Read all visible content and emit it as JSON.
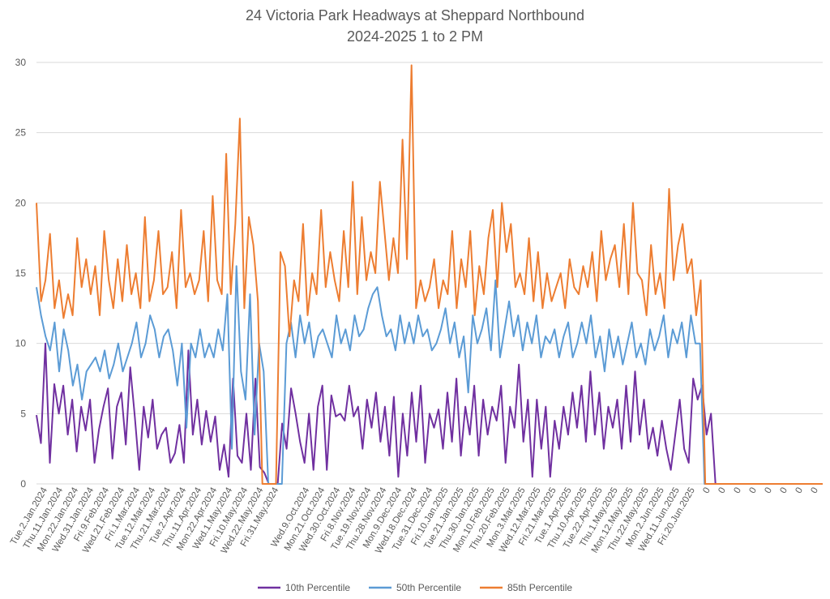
{
  "chart_data": {
    "type": "line",
    "title": "24 Victoria Park Headways at Sheppard Northbound",
    "subtitle": "2024-2025 1 to 2 PM",
    "xlabel": "",
    "ylabel": "",
    "ylim": [
      0,
      30
    ],
    "yticks": [
      0,
      5,
      10,
      15,
      20,
      25,
      30
    ],
    "grid": true,
    "legend_position": "bottom",
    "x_tick_labels": [
      "Tue.2.Jan.2024",
      "Thu.11.Jan.2024",
      "Mon.22.Jan.2024",
      "Wed.31.Jan.2024",
      "Fri.9.Feb.2024",
      "Wed.21.Feb.2024",
      "Fri.1.Mar.2024",
      "Tue.12.Mar.2024",
      "Thu.21.Mar.2024",
      "Tue.2.Apr.2024",
      "Thu.11.Apr.2024",
      "Mon.22.Apr.2024",
      "Wed.1.May.2024",
      "Fri.10.May.2024",
      "Wed.22.May.2024",
      "Fri.31.May.2024",
      "",
      "Wed.9.Oct.2024",
      "Mon.21.Oct.2024",
      "Wed.30.Oct.2024",
      "Fri.8.Nov.2024",
      "Tue.19.Nov.2024",
      "Thu.28.Nov.2024",
      "Mon.9.Dec.2024",
      "Wed.18.Dec.2024",
      "Tue.31.Dec.2024",
      "Fri.10.Jan.2025",
      "Tue.21.Jan.2025",
      "Thu.30.Jan.2025",
      "Mon.10.Feb.2025",
      "Thu.20.Feb.2025",
      "Mon.3.Mar.2025",
      "Wed.12.Mar.2025",
      "Fri.21.Mar.2025",
      "Tue.1.Apr.2025",
      "Thu.10.Apr.2025",
      "Tue.22.Apr.2025",
      "Thu.1.May.2025",
      "Mon.12.May.2025",
      "Thu.22.May.2025",
      "Mon.2.Jun.2025",
      "Wed.11.Jun.2025",
      "Fri.20.Jun.2025",
      "0",
      "0",
      "0",
      "0",
      "0",
      "0",
      "0",
      "0"
    ],
    "series": [
      {
        "name": "10th Percentile",
        "color": "#7030a0",
        "values": [
          4.9,
          2.9,
          10.0,
          1.5,
          7.1,
          5.0,
          7.0,
          3.5,
          6.0,
          2.3,
          5.5,
          3.8,
          6.0,
          1.5,
          3.9,
          5.5,
          6.8,
          1.8,
          5.5,
          6.5,
          2.8,
          8.3,
          4.8,
          1.0,
          5.5,
          3.3,
          6.0,
          2.5,
          3.5,
          4.0,
          1.5,
          2.2,
          4.2,
          1.5,
          9.5,
          3.5,
          6.0,
          2.8,
          5.2,
          3.0,
          4.8,
          1.0,
          2.8,
          0.5,
          7.5,
          2.0,
          1.5,
          5.0,
          1.0,
          7.5,
          1.2,
          0.8,
          0.0,
          0.0,
          0.0,
          4.3,
          2.5,
          6.8,
          5.0,
          3.0,
          1.5,
          5.0,
          1.0,
          5.5,
          7.0,
          1.0,
          6.3,
          4.8,
          5.0,
          4.5,
          7.0,
          4.8,
          5.5,
          2.5,
          6.0,
          4.0,
          6.5,
          3.0,
          5.5,
          2.0,
          6.2,
          0.5,
          5.0,
          2.0,
          6.5,
          3.0,
          7.0,
          1.5,
          5.0,
          4.0,
          5.3,
          2.5,
          6.5,
          3.0,
          7.5,
          2.0,
          5.5,
          3.5,
          7.0,
          2.0,
          6.0,
          3.5,
          5.5,
          4.5,
          7.0,
          1.5,
          5.5,
          4.0,
          8.5,
          3.0,
          6.0,
          0.5,
          6.0,
          2.5,
          5.5,
          0.5,
          4.5,
          2.5,
          5.5,
          3.5,
          6.5,
          4.0,
          7.0,
          3.0,
          8.0,
          3.5,
          6.5,
          2.5,
          5.5,
          4.0,
          6.0,
          2.5,
          7.0,
          3.0,
          8.0,
          3.5,
          6.0,
          2.5,
          4.0,
          2.0,
          4.5,
          2.5,
          1.0,
          3.5,
          6.0,
          2.5,
          1.5,
          7.5,
          6.0,
          7.0,
          3.5,
          5.0,
          0.0,
          0.0,
          0.0,
          0.0,
          0.0,
          0.0,
          0.0,
          0.0,
          0.0,
          0.0,
          0.0,
          0.0,
          0.0,
          0.0,
          0.0,
          0.0,
          0.0,
          0.0,
          0.0,
          0.0,
          0.0,
          0.0,
          0.0,
          0.0,
          0.0
        ]
      },
      {
        "name": "50th Percentile",
        "color": "#5b9bd5",
        "values": [
          14.0,
          12.0,
          10.5,
          9.5,
          11.5,
          8.0,
          11.0,
          9.5,
          7.0,
          8.5,
          6.0,
          8.0,
          8.5,
          9.0,
          8.0,
          9.5,
          7.5,
          8.5,
          10.0,
          8.0,
          9.0,
          10.0,
          11.5,
          9.0,
          10.0,
          12.0,
          11.0,
          9.0,
          10.5,
          11.0,
          9.5,
          7.0,
          10.0,
          4.0,
          10.0,
          9.0,
          11.0,
          9.0,
          10.0,
          9.0,
          11.0,
          9.5,
          13.5,
          2.5,
          15.5,
          8.0,
          6.0,
          13.5,
          3.5,
          10.0,
          8.0,
          0.0,
          0.0,
          0.0,
          0.0,
          10.0,
          11.5,
          9.0,
          12.0,
          10.0,
          11.5,
          9.0,
          10.5,
          11.0,
          10.0,
          9.0,
          12.0,
          10.0,
          11.0,
          9.5,
          12.0,
          10.5,
          11.0,
          12.5,
          13.5,
          14.0,
          12.0,
          10.5,
          11.0,
          9.5,
          12.0,
          10.0,
          11.5,
          10.0,
          12.0,
          10.5,
          11.0,
          9.5,
          10.0,
          11.0,
          12.5,
          10.0,
          11.5,
          9.0,
          10.5,
          6.5,
          12.0,
          10.0,
          11.0,
          12.5,
          9.5,
          14.5,
          9.0,
          11.0,
          13.0,
          10.5,
          12.0,
          9.5,
          11.5,
          10.0,
          12.0,
          9.0,
          10.5,
          10.0,
          11.0,
          9.0,
          10.5,
          11.5,
          9.0,
          10.0,
          11.5,
          10.0,
          12.0,
          9.0,
          10.5,
          8.0,
          11.0,
          9.0,
          10.5,
          8.5,
          10.0,
          11.5,
          9.0,
          10.0,
          8.5,
          11.0,
          9.5,
          10.5,
          12.0,
          9.0,
          11.0,
          10.0,
          11.5,
          9.0,
          12.0,
          10.0,
          10.0,
          0.0,
          0.0,
          0.0,
          0.0,
          0.0,
          0.0,
          0.0,
          0.0,
          0.0,
          0.0,
          0.0,
          0.0,
          0.0,
          0.0,
          0.0,
          0.0,
          0.0,
          0.0,
          0.0,
          0.0,
          0.0,
          0.0,
          0.0,
          0.0,
          0.0,
          0.0,
          0.0
        ]
      },
      {
        "name": "85th Percentile",
        "color": "#ed7d31",
        "values": [
          20.0,
          13.0,
          14.5,
          17.8,
          12.5,
          14.5,
          11.8,
          13.5,
          12.0,
          17.5,
          14.0,
          16.0,
          13.5,
          15.5,
          12.0,
          18.0,
          14.5,
          12.5,
          16.0,
          13.0,
          17.0,
          13.5,
          15.0,
          12.5,
          19.0,
          13.0,
          14.5,
          18.0,
          13.5,
          14.0,
          16.5,
          12.5,
          19.5,
          14.0,
          15.0,
          13.5,
          14.5,
          18.0,
          13.0,
          20.5,
          14.5,
          13.5,
          23.5,
          13.5,
          18.5,
          26.0,
          12.5,
          19.0,
          17.0,
          13.0,
          0.0,
          0.0,
          0.0,
          0.0,
          16.5,
          15.5,
          10.5,
          14.5,
          13.0,
          18.5,
          12.0,
          15.0,
          13.5,
          19.5,
          14.0,
          16.5,
          14.5,
          13.0,
          18.0,
          14.0,
          21.5,
          13.5,
          19.0,
          14.5,
          16.5,
          15.0,
          21.5,
          18.0,
          14.5,
          17.5,
          15.0,
          24.5,
          16.0,
          29.8,
          12.5,
          14.5,
          13.0,
          14.0,
          16.0,
          12.5,
          14.5,
          13.5,
          18.0,
          12.5,
          16.0,
          14.0,
          18.0,
          12.0,
          15.5,
          13.5,
          17.5,
          19.5,
          14.0,
          20.0,
          16.5,
          18.5,
          14.0,
          15.0,
          13.5,
          17.5,
          13.0,
          16.5,
          12.5,
          15.0,
          13.0,
          14.0,
          15.0,
          12.5,
          16.0,
          14.0,
          13.5,
          15.5,
          14.0,
          16.5,
          13.0,
          18.0,
          14.5,
          16.0,
          17.0,
          14.0,
          18.5,
          13.5,
          20.0,
          15.0,
          14.5,
          12.0,
          17.0,
          13.5,
          15.0,
          12.5,
          21.0,
          14.5,
          17.0,
          18.5,
          15.0,
          16.0,
          12.0,
          14.5,
          0.0,
          0.0,
          0.0,
          0.0,
          0.0,
          0.0,
          0.0,
          0.0,
          0.0,
          0.0,
          0.0,
          0.0,
          0.0,
          0.0,
          0.0,
          0.0,
          0.0,
          0.0,
          0.0,
          0.0,
          0.0,
          0.0,
          0.0,
          0.0,
          0.0,
          0.0,
          0.0
        ]
      }
    ]
  }
}
